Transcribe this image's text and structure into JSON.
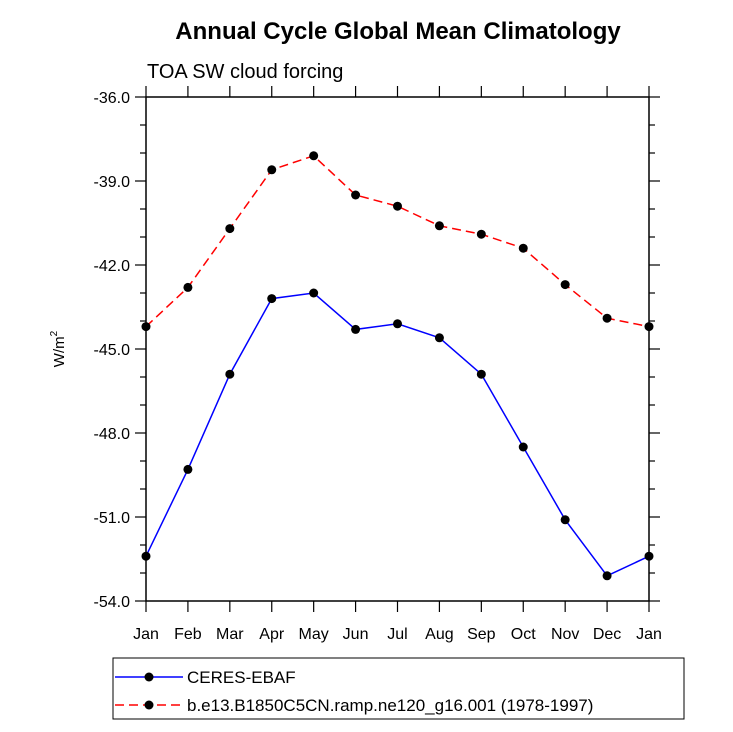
{
  "chart_data": {
    "type": "line",
    "title": "Annual Cycle Global Mean Climatology",
    "subtitle": "TOA SW cloud forcing",
    "ylabel": "W/m",
    "ylabel_superscript": "2",
    "categories": [
      "Jan",
      "Feb",
      "Mar",
      "Apr",
      "May",
      "Jun",
      "Jul",
      "Aug",
      "Sep",
      "Oct",
      "Nov",
      "Dec",
      "Jan"
    ],
    "ylim": [
      -54.0,
      -36.0
    ],
    "yticks": [
      "-36.0",
      "-39.0",
      "-42.0",
      "-45.0",
      "-48.0",
      "-51.0",
      "-54.0"
    ],
    "ytick_values": [
      -36,
      -39,
      -42,
      -45,
      -48,
      -51,
      -54
    ],
    "grid": false,
    "legend_position": "bottom",
    "series": [
      {
        "name": "CERES-EBAF",
        "color": "#0000ff",
        "line_style": "solid",
        "values": [
          -52.4,
          -49.3,
          -45.9,
          -43.2,
          -43.0,
          -44.3,
          -44.1,
          -44.6,
          -45.9,
          -48.5,
          -51.1,
          -53.1,
          -52.4
        ]
      },
      {
        "name": "b.e13.B1850C5CN.ramp.ne120_g16.001 (1978-1997)",
        "color": "#ff0000",
        "line_style": "dashed",
        "values": [
          -44.2,
          -42.8,
          -40.7,
          -38.6,
          -38.1,
          -39.5,
          -39.9,
          -40.6,
          -40.9,
          -41.4,
          -42.7,
          -43.9,
          -44.2
        ]
      }
    ]
  }
}
